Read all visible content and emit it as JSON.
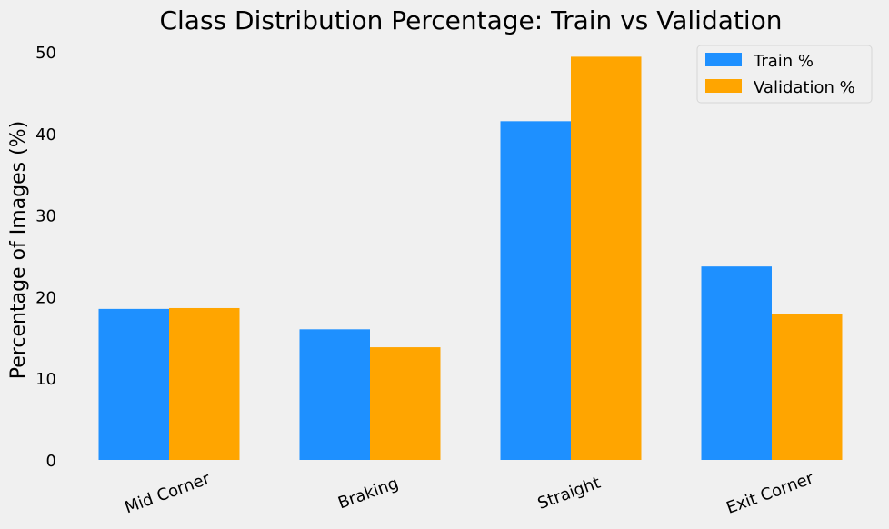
{
  "chart_data": {
    "type": "bar",
    "title": "Class Distribution Percentage: Train vs Validation",
    "xlabel": "",
    "ylabel": "Percentage of Images (%)",
    "categories": [
      "Mid Corner",
      "Braking",
      "Straight",
      "Exit Corner"
    ],
    "series": [
      {
        "name": "Train %",
        "color": "#1e90ff",
        "values": [
          18.5,
          16.0,
          41.5,
          23.7
        ]
      },
      {
        "name": "Validation %",
        "color": "#ffa500",
        "values": [
          18.6,
          13.8,
          49.4,
          17.9
        ]
      }
    ],
    "ylim": [
      0,
      50
    ],
    "yticks": [
      "0",
      "10",
      "20",
      "30",
      "40",
      "50"
    ],
    "grid": false,
    "legend": "top-right",
    "background": "#f0f0f0"
  }
}
